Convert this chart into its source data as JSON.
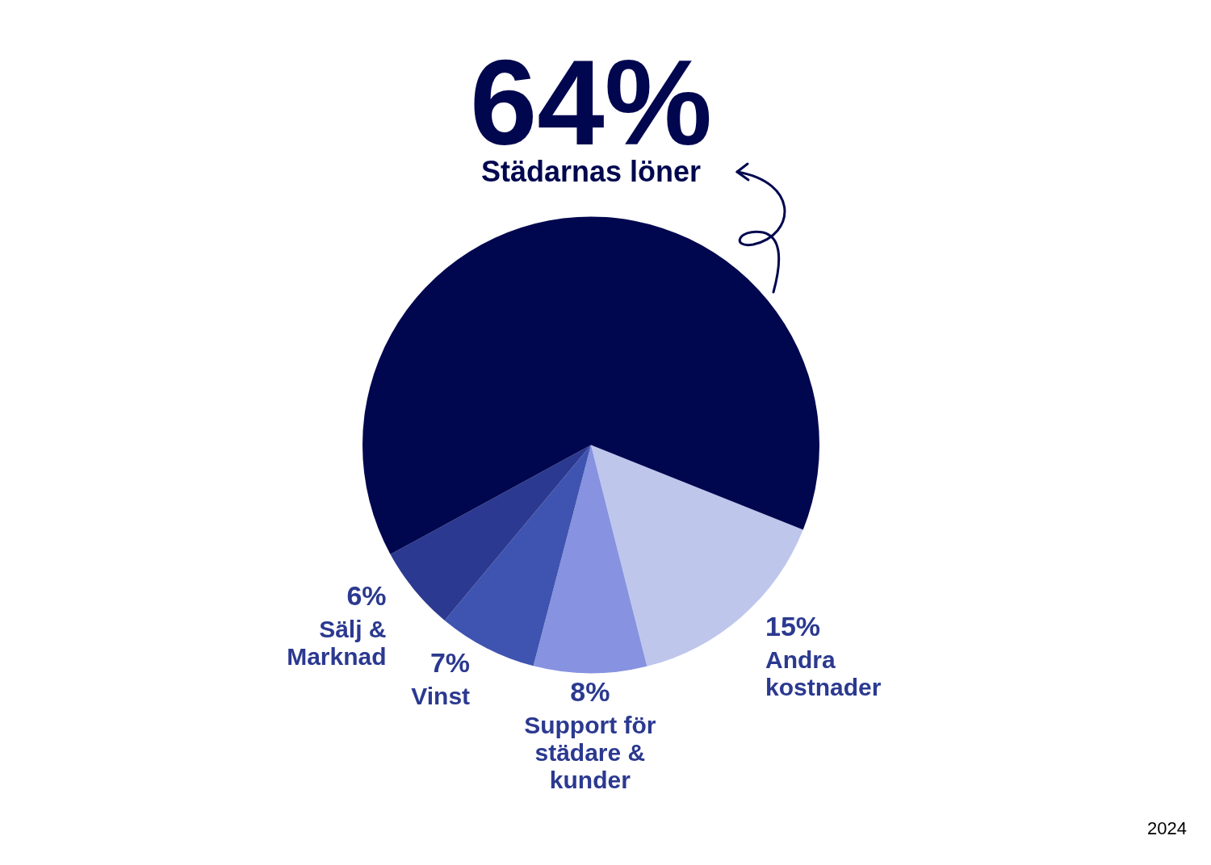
{
  "chart_data": {
    "type": "pie",
    "categories": [
      "Andra kostnader",
      "Support för städare & kunder",
      "Vinst",
      "Sälj & Marknad",
      "Städarnas löner"
    ],
    "values": [
      15,
      8,
      7,
      6,
      64
    ],
    "colors": [
      "#bfc6ec",
      "#8793e0",
      "#3f53b0",
      "#2b3990",
      "#00074f"
    ],
    "value_labels": [
      "15%",
      "8%",
      "7%",
      "6%",
      "64%"
    ],
    "annotations": [
      "2024"
    ]
  }
}
